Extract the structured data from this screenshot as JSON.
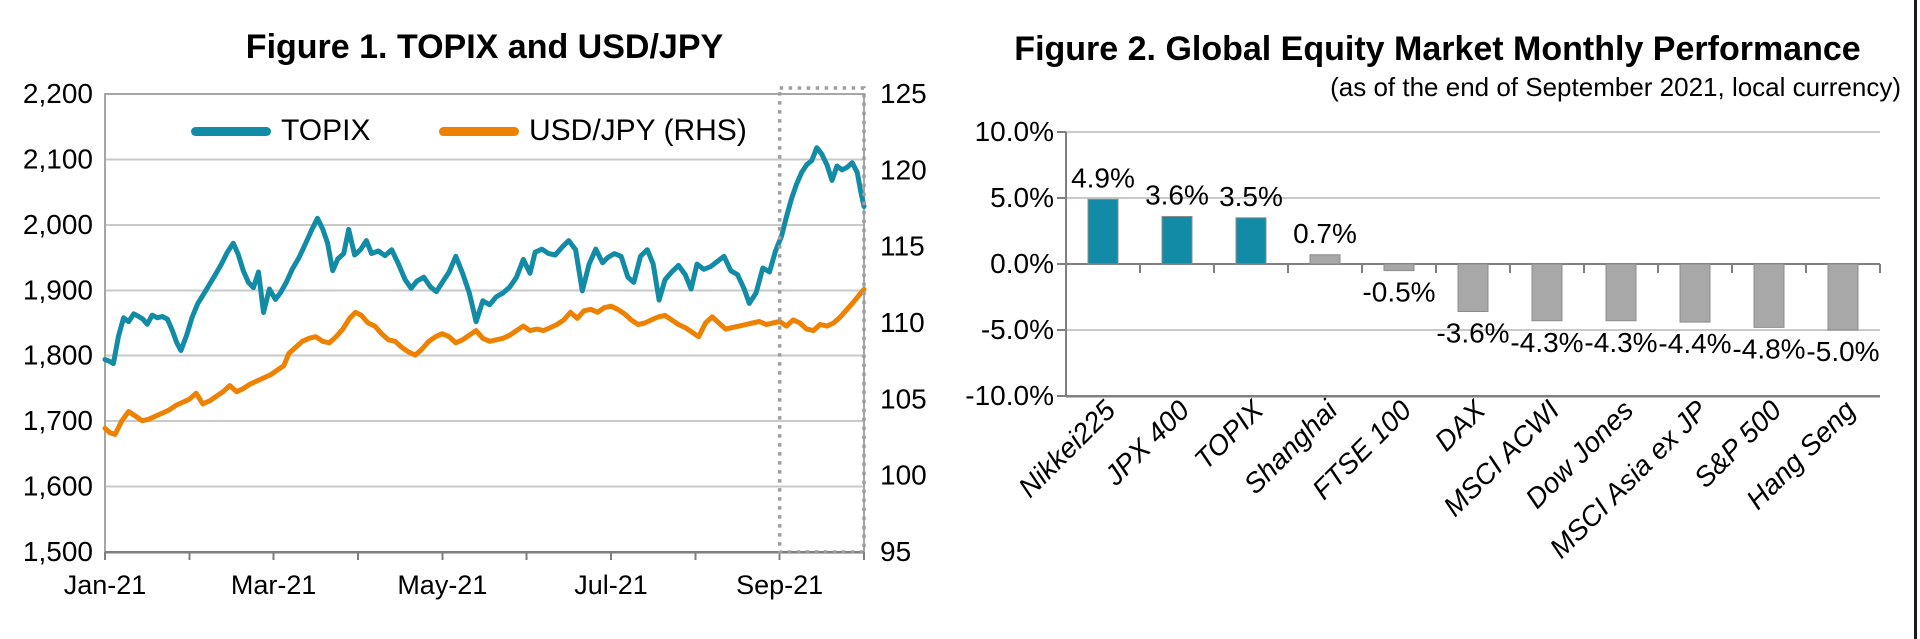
{
  "page": {
    "background": "#ffffff",
    "right_border_color": "#1a1a1a"
  },
  "chart_data": [
    {
      "type": "line",
      "title": "Figure 1. TOPIX and USD/JPY",
      "legend": [
        {
          "name": "TOPIX",
          "color": "#128BA7"
        },
        {
          "name": "USD/JPY (RHS)",
          "color": "#EE8100"
        }
      ],
      "legend_position": "top-inside",
      "grid": true,
      "x_axis": {
        "tick_labels": [
          "Jan-21",
          "Mar-21",
          "May-21",
          "Jul-21",
          "Sep-21"
        ],
        "tick_months": [
          0,
          2,
          4,
          6,
          8
        ],
        "domain_months": [
          0,
          9
        ]
      },
      "y_left": {
        "min": 1500,
        "max": 2200,
        "step": 100,
        "tick_labels": [
          "2,200",
          "2,100",
          "2,000",
          "1,900",
          "1,800",
          "1,700",
          "1,600",
          "1,500"
        ]
      },
      "y_right": {
        "min": 95,
        "max": 125,
        "step": 5,
        "tick_labels": [
          "125",
          "120",
          "115",
          "110",
          "105",
          "100",
          "95"
        ]
      },
      "highlight_box": {
        "from_month": 8,
        "to_month": 9,
        "style": "dotted",
        "color": "#9e9e9e"
      },
      "series": [
        {
          "name": "TOPIX",
          "axis": "left",
          "color": "#128BA7",
          "points": [
            [
              0.0,
              1794
            ],
            [
              0.06,
              1791
            ],
            [
              0.1,
              1788
            ],
            [
              0.16,
              1830
            ],
            [
              0.22,
              1858
            ],
            [
              0.28,
              1852
            ],
            [
              0.34,
              1864
            ],
            [
              0.4,
              1860
            ],
            [
              0.45,
              1856
            ],
            [
              0.5,
              1848
            ],
            [
              0.56,
              1862
            ],
            [
              0.62,
              1858
            ],
            [
              0.68,
              1860
            ],
            [
              0.74,
              1856
            ],
            [
              0.8,
              1838
            ],
            [
              0.85,
              1820
            ],
            [
              0.9,
              1808
            ],
            [
              0.97,
              1832
            ],
            [
              1.03,
              1858
            ],
            [
              1.1,
              1880
            ],
            [
              1.16,
              1892
            ],
            [
              1.22,
              1905
            ],
            [
              1.3,
              1922
            ],
            [
              1.38,
              1940
            ],
            [
              1.45,
              1958
            ],
            [
              1.52,
              1972
            ],
            [
              1.58,
              1955
            ],
            [
              1.64,
              1930
            ],
            [
              1.7,
              1912
            ],
            [
              1.76,
              1904
            ],
            [
              1.82,
              1928
            ],
            [
              1.88,
              1866
            ],
            [
              1.95,
              1902
            ],
            [
              2.02,
              1886
            ],
            [
              2.08,
              1896
            ],
            [
              2.15,
              1912
            ],
            [
              2.22,
              1932
            ],
            [
              2.3,
              1950
            ],
            [
              2.38,
              1972
            ],
            [
              2.45,
              1992
            ],
            [
              2.52,
              2010
            ],
            [
              2.58,
              1994
            ],
            [
              2.64,
              1972
            ],
            [
              2.7,
              1930
            ],
            [
              2.76,
              1948
            ],
            [
              2.83,
              1956
            ],
            [
              2.89,
              1993
            ],
            [
              2.96,
              1954
            ],
            [
              3.03,
              1962
            ],
            [
              3.1,
              1976
            ],
            [
              3.16,
              1956
            ],
            [
              3.24,
              1960
            ],
            [
              3.32,
              1953
            ],
            [
              3.4,
              1962
            ],
            [
              3.48,
              1940
            ],
            [
              3.56,
              1916
            ],
            [
              3.63,
              1903
            ],
            [
              3.7,
              1914
            ],
            [
              3.78,
              1920
            ],
            [
              3.86,
              1905
            ],
            [
              3.93,
              1898
            ],
            [
              4.0,
              1912
            ],
            [
              4.08,
              1928
            ],
            [
              4.16,
              1952
            ],
            [
              4.24,
              1926
            ],
            [
              4.32,
              1896
            ],
            [
              4.4,
              1852
            ],
            [
              4.48,
              1884
            ],
            [
              4.56,
              1878
            ],
            [
              4.64,
              1890
            ],
            [
              4.72,
              1896
            ],
            [
              4.8,
              1905
            ],
            [
              4.88,
              1920
            ],
            [
              4.96,
              1947
            ],
            [
              5.04,
              1926
            ],
            [
              5.1,
              1958
            ],
            [
              5.18,
              1963
            ],
            [
              5.26,
              1956
            ],
            [
              5.34,
              1954
            ],
            [
              5.42,
              1966
            ],
            [
              5.5,
              1976
            ],
            [
              5.58,
              1962
            ],
            [
              5.66,
              1899
            ],
            [
              5.74,
              1940
            ],
            [
              5.82,
              1963
            ],
            [
              5.9,
              1942
            ],
            [
              5.96,
              1950
            ],
            [
              6.04,
              1956
            ],
            [
              6.12,
              1952
            ],
            [
              6.2,
              1920
            ],
            [
              6.27,
              1912
            ],
            [
              6.35,
              1952
            ],
            [
              6.43,
              1962
            ],
            [
              6.5,
              1940
            ],
            [
              6.57,
              1885
            ],
            [
              6.64,
              1916
            ],
            [
              6.72,
              1928
            ],
            [
              6.8,
              1938
            ],
            [
              6.88,
              1924
            ],
            [
              6.95,
              1902
            ],
            [
              7.02,
              1940
            ],
            [
              7.1,
              1932
            ],
            [
              7.18,
              1936
            ],
            [
              7.26,
              1944
            ],
            [
              7.34,
              1952
            ],
            [
              7.42,
              1930
            ],
            [
              7.5,
              1924
            ],
            [
              7.58,
              1902
            ],
            [
              7.64,
              1880
            ],
            [
              7.72,
              1896
            ],
            [
              7.8,
              1934
            ],
            [
              7.88,
              1928
            ],
            [
              7.95,
              1960
            ],
            [
              8.02,
              1982
            ],
            [
              8.08,
              2012
            ],
            [
              8.14,
              2040
            ],
            [
              8.2,
              2062
            ],
            [
              8.26,
              2080
            ],
            [
              8.32,
              2092
            ],
            [
              8.38,
              2098
            ],
            [
              8.44,
              2118
            ],
            [
              8.5,
              2108
            ],
            [
              8.56,
              2092
            ],
            [
              8.62,
              2068
            ],
            [
              8.68,
              2090
            ],
            [
              8.74,
              2084
            ],
            [
              8.8,
              2088
            ],
            [
              8.86,
              2095
            ],
            [
              8.92,
              2080
            ],
            [
              8.96,
              2052
            ],
            [
              9.0,
              2028
            ]
          ]
        },
        {
          "name": "USD/JPY (RHS)",
          "axis": "right",
          "color": "#EE8100",
          "points": [
            [
              0.0,
              103.1
            ],
            [
              0.06,
              102.8
            ],
            [
              0.12,
              102.7
            ],
            [
              0.2,
              103.6
            ],
            [
              0.28,
              104.2
            ],
            [
              0.36,
              103.9
            ],
            [
              0.44,
              103.6
            ],
            [
              0.52,
              103.7
            ],
            [
              0.6,
              103.9
            ],
            [
              0.68,
              104.1
            ],
            [
              0.76,
              104.3
            ],
            [
              0.84,
              104.6
            ],
            [
              0.92,
              104.8
            ],
            [
              1.0,
              105.0
            ],
            [
              1.08,
              105.4
            ],
            [
              1.16,
              104.7
            ],
            [
              1.24,
              104.9
            ],
            [
              1.32,
              105.2
            ],
            [
              1.4,
              105.5
            ],
            [
              1.48,
              105.9
            ],
            [
              1.56,
              105.5
            ],
            [
              1.64,
              105.7
            ],
            [
              1.72,
              106.0
            ],
            [
              1.8,
              106.2
            ],
            [
              1.88,
              106.4
            ],
            [
              1.96,
              106.6
            ],
            [
              2.04,
              106.9
            ],
            [
              2.12,
              107.2
            ],
            [
              2.18,
              108.0
            ],
            [
              2.26,
              108.4
            ],
            [
              2.34,
              108.8
            ],
            [
              2.42,
              109.0
            ],
            [
              2.5,
              109.1
            ],
            [
              2.58,
              108.8
            ],
            [
              2.66,
              108.7
            ],
            [
              2.74,
              109.1
            ],
            [
              2.82,
              109.6
            ],
            [
              2.9,
              110.3
            ],
            [
              2.97,
              110.7
            ],
            [
              3.04,
              110.5
            ],
            [
              3.12,
              110.0
            ],
            [
              3.2,
              109.8
            ],
            [
              3.28,
              109.3
            ],
            [
              3.36,
              108.9
            ],
            [
              3.44,
              108.8
            ],
            [
              3.52,
              108.4
            ],
            [
              3.6,
              108.1
            ],
            [
              3.68,
              107.9
            ],
            [
              3.76,
              108.3
            ],
            [
              3.84,
              108.8
            ],
            [
              3.92,
              109.1
            ],
            [
              4.0,
              109.3
            ],
            [
              4.08,
              109.1
            ],
            [
              4.16,
              108.7
            ],
            [
              4.24,
              108.9
            ],
            [
              4.32,
              109.2
            ],
            [
              4.4,
              109.5
            ],
            [
              4.48,
              109.0
            ],
            [
              4.56,
              108.8
            ],
            [
              4.64,
              108.9
            ],
            [
              4.72,
              109.0
            ],
            [
              4.8,
              109.2
            ],
            [
              4.88,
              109.5
            ],
            [
              4.96,
              109.8
            ],
            [
              5.04,
              109.5
            ],
            [
              5.12,
              109.6
            ],
            [
              5.2,
              109.5
            ],
            [
              5.28,
              109.7
            ],
            [
              5.36,
              109.9
            ],
            [
              5.44,
              110.2
            ],
            [
              5.52,
              110.7
            ],
            [
              5.6,
              110.3
            ],
            [
              5.68,
              110.8
            ],
            [
              5.76,
              110.9
            ],
            [
              5.84,
              110.7
            ],
            [
              5.92,
              111.0
            ],
            [
              6.0,
              111.1
            ],
            [
              6.08,
              110.9
            ],
            [
              6.16,
              110.6
            ],
            [
              6.24,
              110.2
            ],
            [
              6.32,
              109.9
            ],
            [
              6.4,
              110.0
            ],
            [
              6.48,
              110.2
            ],
            [
              6.56,
              110.4
            ],
            [
              6.64,
              110.5
            ],
            [
              6.72,
              110.2
            ],
            [
              6.8,
              109.9
            ],
            [
              6.88,
              109.7
            ],
            [
              6.96,
              109.4
            ],
            [
              7.04,
              109.1
            ],
            [
              7.12,
              110.0
            ],
            [
              7.2,
              110.4
            ],
            [
              7.28,
              110.0
            ],
            [
              7.36,
              109.6
            ],
            [
              7.44,
              109.7
            ],
            [
              7.52,
              109.8
            ],
            [
              7.6,
              109.9
            ],
            [
              7.68,
              110.0
            ],
            [
              7.76,
              110.1
            ],
            [
              7.84,
              109.9
            ],
            [
              7.92,
              110.0
            ],
            [
              8.0,
              110.1
            ],
            [
              8.08,
              109.8
            ],
            [
              8.16,
              110.2
            ],
            [
              8.24,
              110.0
            ],
            [
              8.32,
              109.6
            ],
            [
              8.4,
              109.5
            ],
            [
              8.48,
              109.9
            ],
            [
              8.56,
              109.8
            ],
            [
              8.64,
              110.0
            ],
            [
              8.72,
              110.4
            ],
            [
              8.8,
              110.9
            ],
            [
              8.88,
              111.4
            ],
            [
              8.94,
              111.8
            ],
            [
              9.0,
              112.2
            ]
          ]
        }
      ]
    },
    {
      "type": "bar",
      "title": "Figure 2. Global Equity Market Monthly Performance",
      "subtitle": "(as of the end of September 2021, local currency)",
      "categories": [
        "Nikkei225",
        "JPX 400",
        "TOPIX",
        "Shanghai",
        "FTSE 100",
        "DAX",
        "MSCI ACWI",
        "Dow Jones",
        "MSCI Asia ex JP",
        "S&P 500",
        "Hang Seng"
      ],
      "values": [
        4.9,
        3.6,
        3.5,
        0.7,
        -0.5,
        -3.6,
        -4.3,
        -4.3,
        -4.4,
        -4.8,
        -5.0
      ],
      "value_labels": [
        "4.9%",
        "3.6%",
        "3.5%",
        "0.7%",
        "-0.5%",
        "-3.6%",
        "-4.3%",
        "-4.3%",
        "-4.4%",
        "-4.8%",
        "-5.0%"
      ],
      "bar_colors": [
        "#128BA7",
        "#128BA7",
        "#128BA7",
        "#A8A8A8",
        "#A8A8A8",
        "#A8A8A8",
        "#A8A8A8",
        "#A8A8A8",
        "#A8A8A8",
        "#A8A8A8",
        "#A8A8A8"
      ],
      "ylim": [
        -10,
        10
      ],
      "y_tick_labels": [
        "10.0%",
        "5.0%",
        "0.0%",
        "-5.0%",
        "-10.0%"
      ],
      "y_tick_values": [
        10,
        5,
        0,
        -5,
        -10
      ],
      "grid": true,
      "legend_position": "none"
    }
  ]
}
